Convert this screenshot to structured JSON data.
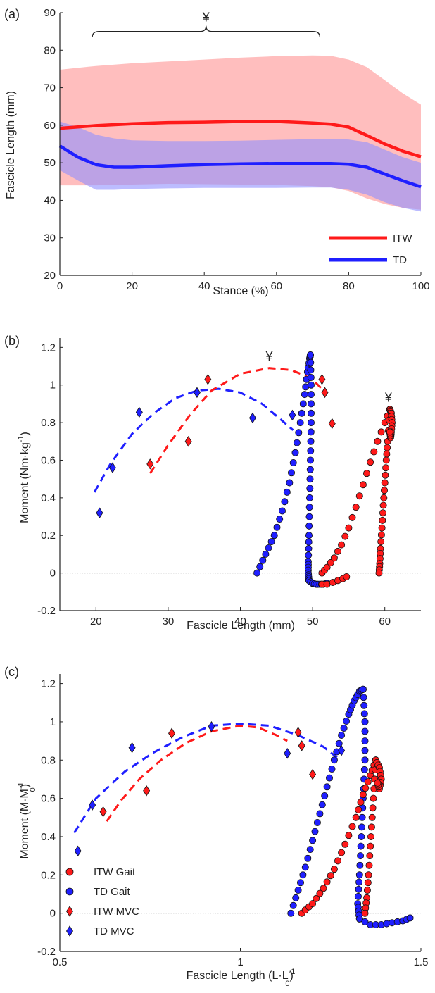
{
  "colors": {
    "itw": "#ff1a1a",
    "td": "#1f1fff",
    "itw_band": "#ffb3b3",
    "td_band": "#8f8fff",
    "marker_edge": "#111111",
    "axis": "#222222"
  },
  "panel_a": {
    "panel_label": "(a)",
    "xlabel": "Stance (%)",
    "ylabel": "Fascicle Length (mm)",
    "xticks": [
      "0",
      "20",
      "40",
      "60",
      "80",
      "100"
    ],
    "yticks": [
      "20",
      "30",
      "40",
      "50",
      "60",
      "70",
      "80",
      "90"
    ],
    "bracket_label": "¥",
    "legend": [
      {
        "label": "ITW",
        "color": "#ff1a1a"
      },
      {
        "label": "TD",
        "color": "#1f1fff"
      }
    ]
  },
  "panel_b": {
    "panel_label": "(b)",
    "xlabel": "Fascicle Length (mm)",
    "ylabel": "Moment (Nm·kg",
    "ylabel_sup": "-1",
    "ylabel_end": ")",
    "xticks": [
      "20",
      "30",
      "40",
      "50",
      "60"
    ],
    "yticks": [
      "-0.2",
      "0",
      "0.2",
      "0.4",
      "0.6",
      "0.8",
      "1",
      "1.2"
    ],
    "markers": [
      "¥",
      "¥"
    ]
  },
  "panel_c": {
    "panel_label": "(c)",
    "xlabel": "Fascicle Length (L·L",
    "xlabel_sup": "-1",
    "xlabel_sub": "0",
    "xlabel_end": ")",
    "ylabel": "Moment (M·M",
    "ylabel_sup": "-1",
    "ylabel_sub": "0",
    "ylabel_end": ")",
    "xticks": [
      "0.5",
      "1",
      "1.5"
    ],
    "yticks": [
      "-0.2",
      "0",
      "0.2",
      "0.4",
      "0.6",
      "0.8",
      "1",
      "1.2"
    ],
    "legend": [
      {
        "label": "ITW Gait",
        "color": "#ff1a1a",
        "shape": "circle"
      },
      {
        "label": "TD Gait",
        "color": "#1f1fff",
        "shape": "circle"
      },
      {
        "label": "ITW MVC",
        "color": "#ff1a1a",
        "shape": "diamond"
      },
      {
        "label": "TD MVC",
        "color": "#1f1fff",
        "shape": "diamond"
      }
    ]
  },
  "chart_data": [
    {
      "panel": "a",
      "type": "line",
      "xlabel": "Stance (%)",
      "ylabel": "Fascicle Length (mm)",
      "xlim": [
        0,
        100
      ],
      "ylim": [
        20,
        90
      ],
      "annotation": {
        "text": "¥",
        "x_range": [
          9,
          72
        ],
        "y": 85
      },
      "series": [
        {
          "name": "ITW",
          "x": [
            0,
            10,
            20,
            30,
            40,
            50,
            60,
            70,
            75,
            80,
            85,
            90,
            95,
            100
          ],
          "mean": [
            59.2,
            59.9,
            60.4,
            60.7,
            60.8,
            61,
            61,
            60.6,
            60.3,
            59.5,
            57.3,
            55,
            53.1,
            51.6
          ],
          "upper": [
            74.8,
            75.8,
            76.5,
            77,
            77.5,
            78,
            78.4,
            78.6,
            78.5,
            77.5,
            75.5,
            72,
            68.5,
            65.5
          ],
          "lower": [
            44,
            44,
            44.2,
            44.4,
            44.3,
            44.2,
            44.1,
            43.8,
            43.5,
            42.5,
            40.5,
            39,
            38,
            37.5
          ]
        },
        {
          "name": "TD",
          "x": [
            0,
            5,
            10,
            15,
            20,
            30,
            40,
            50,
            60,
            70,
            75,
            80,
            85,
            90,
            95,
            100
          ],
          "mean": [
            54.5,
            51.5,
            49.5,
            48.8,
            48.8,
            49.2,
            49.5,
            49.7,
            49.8,
            49.8,
            49.8,
            49.6,
            48.8,
            47,
            45.2,
            43.6
          ],
          "upper": [
            61,
            59.5,
            57.5,
            56.5,
            56,
            55.8,
            55.8,
            55.9,
            56.1,
            56.3,
            56.4,
            56.2,
            55.5,
            53.5,
            51.5,
            50
          ],
          "lower": [
            48,
            45.3,
            42.8,
            42.8,
            43,
            43.2,
            43.3,
            43.3,
            43.3,
            43.4,
            43.4,
            42.8,
            41.5,
            39.5,
            38,
            37
          ]
        }
      ]
    },
    {
      "panel": "b",
      "type": "scatter",
      "xlabel": "Fascicle Length (mm)",
      "ylabel": "Moment (Nm·kg-1)",
      "xlim": [
        15,
        65
      ],
      "ylim": [
        -0.2,
        1.25
      ],
      "reference_line_y": 0,
      "mvc_points": {
        "ITW": [
          [
            27.5,
            0.58
          ],
          [
            32.8,
            0.7
          ],
          [
            35.5,
            1.03
          ],
          [
            51.3,
            1.03
          ],
          [
            51.7,
            0.96
          ],
          [
            52.7,
            0.795
          ]
        ],
        "TD": [
          [
            20.5,
            0.32
          ],
          [
            22.3,
            0.56
          ],
          [
            26,
            0.855
          ],
          [
            34,
            0.96
          ],
          [
            41.7,
            0.825
          ],
          [
            47.2,
            0.84
          ]
        ]
      },
      "fit_curves": {
        "ITW": {
          "x": [
            27.5,
            30,
            33,
            36,
            40,
            44,
            47,
            49,
            50.5,
            51.8
          ],
          "y": [
            0.53,
            0.68,
            0.84,
            0.97,
            1.06,
            1.09,
            1.08,
            1.05,
            1.01,
            0.96
          ]
        },
        "TD": {
          "x": [
            19.8,
            22,
            25,
            28,
            31,
            34,
            37,
            40,
            43,
            45.5,
            47.3
          ],
          "y": [
            0.43,
            0.58,
            0.74,
            0.85,
            0.93,
            0.97,
            0.98,
            0.96,
            0.9,
            0.82,
            0.76
          ]
        }
      },
      "gait_loops": {
        "ITW": {
          "stance_x": [
            51.3,
            52,
            53,
            54,
            55,
            56,
            57,
            58,
            59,
            60,
            60.7
          ],
          "stance_y": [
            0,
            0.03,
            0.08,
            0.15,
            0.24,
            0.35,
            0.47,
            0.59,
            0.7,
            0.8,
            0.87
          ],
          "release_x": [
            60.7,
            60.4,
            60.2,
            60,
            59.8,
            59.6,
            59.4,
            59.3,
            59.2
          ],
          "release_y": [
            0.87,
            0.7,
            0.6,
            0.48,
            0.36,
            0.24,
            0.13,
            0.05,
            0
          ],
          "peak_x": [
            60.7,
            60.9,
            61,
            60.9,
            60.8,
            60.7
          ],
          "peak_y": [
            0.87,
            0.85,
            0.8,
            0.75,
            0.72,
            0.75
          ],
          "tail_x": [
            51.3,
            52,
            52.8,
            53.5,
            54.2,
            54.7
          ],
          "tail_y": [
            -0.06,
            -0.06,
            -0.05,
            -0.04,
            -0.03,
            -0.02
          ]
        },
        "TD": {
          "stance_x": [
            42.3,
            43.5,
            44.7,
            45.8,
            46.8,
            47.6,
            48.3,
            48.9,
            49.3,
            49.6,
            49.7
          ],
          "stance_y": [
            0,
            0.1,
            0.2,
            0.33,
            0.48,
            0.64,
            0.8,
            0.95,
            1.07,
            1.14,
            1.16
          ],
          "release_x": [
            49.7,
            49.8,
            49.8,
            49.7,
            49.6,
            49.5,
            49.4,
            49.4,
            49.5
          ],
          "release_y": [
            1.16,
            1.0,
            0.8,
            0.6,
            0.4,
            0.2,
            0.06,
            0,
            -0.04
          ],
          "tail_x": [
            49.5,
            50,
            50.5,
            51,
            51.5,
            52
          ],
          "tail_y": [
            -0.04,
            -0.055,
            -0.06,
            -0.06,
            -0.06,
            -0.055
          ]
        }
      }
    },
    {
      "panel": "c",
      "type": "scatter",
      "xlabel": "Fascicle Length (L·L0-1)",
      "ylabel": "Moment (M·M0-1)",
      "xlim": [
        0.5,
        1.5
      ],
      "ylim": [
        -0.2,
        1.25
      ],
      "reference_line_y": 0,
      "series_names": [
        "ITW Gait",
        "TD Gait",
        "ITW MVC",
        "TD MVC"
      ],
      "mvc_points": {
        "ITW": [
          [
            0.62,
            0.53
          ],
          [
            0.74,
            0.64
          ],
          [
            0.81,
            0.94
          ],
          [
            1.16,
            0.945
          ],
          [
            1.17,
            0.875
          ],
          [
            1.2,
            0.725
          ]
        ],
        "TD": [
          [
            0.55,
            0.325
          ],
          [
            0.59,
            0.565
          ],
          [
            0.7,
            0.865
          ],
          [
            0.92,
            0.975
          ],
          [
            1.13,
            0.835
          ],
          [
            1.28,
            0.85
          ]
        ]
      },
      "fit_curves": {
        "ITW": {
          "x": [
            0.63,
            0.67,
            0.72,
            0.78,
            0.85,
            0.92,
            1.0,
            1.05,
            1.1,
            1.13
          ],
          "y": [
            0.48,
            0.59,
            0.7,
            0.8,
            0.89,
            0.95,
            0.98,
            0.97,
            0.93,
            0.9
          ]
        },
        "TD": {
          "x": [
            0.54,
            0.6,
            0.68,
            0.76,
            0.84,
            0.92,
            1.0,
            1.08,
            1.16,
            1.23,
            1.27
          ],
          "y": [
            0.42,
            0.6,
            0.74,
            0.84,
            0.92,
            0.98,
            0.99,
            0.98,
            0.93,
            0.87,
            0.81
          ]
        }
      },
      "gait_loops": {
        "ITW": {
          "stance_x": [
            1.17,
            1.2,
            1.23,
            1.26,
            1.29,
            1.32,
            1.34,
            1.36,
            1.375
          ],
          "stance_y": [
            0,
            0.05,
            0.13,
            0.23,
            0.36,
            0.5,
            0.62,
            0.72,
            0.8
          ],
          "release_x": [
            1.375,
            1.37,
            1.365,
            1.36,
            1.355,
            1.35,
            1.345
          ],
          "release_y": [
            0.8,
            0.65,
            0.5,
            0.35,
            0.2,
            0.08,
            0
          ],
          "peak_x": [
            1.375,
            1.385,
            1.39,
            1.385,
            1.38
          ],
          "peak_y": [
            0.8,
            0.76,
            0.7,
            0.65,
            0.68
          ]
        },
        "TD": {
          "stance_x": [
            1.14,
            1.16,
            1.18,
            1.2,
            1.22,
            1.24,
            1.26,
            1.28,
            1.3,
            1.315,
            1.33,
            1.34
          ],
          "stance_y": [
            0,
            0.12,
            0.24,
            0.38,
            0.52,
            0.66,
            0.8,
            0.93,
            1.04,
            1.11,
            1.16,
            1.17
          ],
          "release_x": [
            1.34,
            1.345,
            1.345,
            1.34,
            1.335,
            1.33,
            1.325,
            1.33
          ],
          "release_y": [
            1.17,
            1.0,
            0.8,
            0.6,
            0.4,
            0.2,
            0.05,
            -0.03
          ],
          "tail_x": [
            1.33,
            1.36,
            1.39,
            1.42,
            1.45,
            1.47
          ],
          "tail_y": [
            -0.03,
            -0.06,
            -0.06,
            -0.05,
            -0.04,
            -0.025
          ]
        }
      }
    }
  ]
}
